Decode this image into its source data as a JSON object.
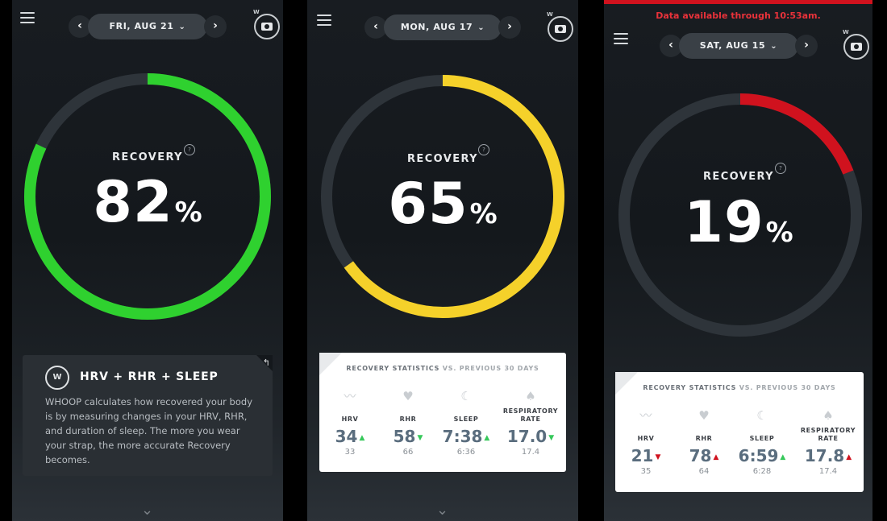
{
  "screens": [
    {
      "date": "FRI, AUG 21",
      "recovery_label": "RECOVERY",
      "recovery_value": "82",
      "percent_sign": "%",
      "recovery_fraction": 0.82,
      "ring_color": "#2fd12f",
      "info_card": {
        "title": "HRV + RHR + SLEEP",
        "logo_text": "W",
        "body": "WHOOP calculates how recovered your body is by measuring changes in your HRV, RHR, and duration of sleep. The more you wear your strap, the more accurate Recovery becomes."
      },
      "scroll_chevron": "⌄"
    },
    {
      "date": "MON, AUG 17",
      "recovery_label": "RECOVERY",
      "recovery_value": "65",
      "percent_sign": "%",
      "recovery_fraction": 0.65,
      "ring_color": "#f5d12a",
      "stats": {
        "title": "RECOVERY STATISTICS",
        "subtitle": "VS. PREVIOUS 30 DAYS",
        "items": [
          {
            "label": "HRV",
            "value": "34",
            "baseline": "33",
            "trend": "up",
            "icon": "heartbeat-icon"
          },
          {
            "label": "RHR",
            "value": "58",
            "baseline": "66",
            "trend": "down",
            "icon": "heart-icon"
          },
          {
            "label": "SLEEP",
            "value": "7:38",
            "baseline": "6:36",
            "trend": "up",
            "icon": "moon-icon"
          },
          {
            "label": "RESPIRATORY RATE",
            "value": "17.0",
            "baseline": "17.4",
            "trend": "down",
            "icon": "lungs-icon"
          }
        ]
      },
      "scroll_chevron": "⌄"
    },
    {
      "banner": "Data available through 10:53am.",
      "date": "SAT, AUG 15",
      "recovery_label": "RECOVERY",
      "recovery_value": "19",
      "percent_sign": "%",
      "recovery_fraction": 0.19,
      "ring_color": "#d0121e",
      "stats": {
        "title": "RECOVERY STATISTICS",
        "subtitle": "VS. PREVIOUS 30 DAYS",
        "items": [
          {
            "label": "HRV",
            "value": "21",
            "baseline": "35",
            "trend": "down",
            "icon": "heartbeat-icon"
          },
          {
            "label": "RHR",
            "value": "78",
            "baseline": "64",
            "trend": "up",
            "icon": "heart-icon"
          },
          {
            "label": "SLEEP",
            "value": "6:59",
            "baseline": "6:28",
            "trend": "up",
            "icon": "moon-icon"
          },
          {
            "label": "RESPIRATORY RATE",
            "value": "17.8",
            "baseline": "17.4",
            "trend": "up",
            "icon": "lungs-icon"
          }
        ]
      }
    }
  ],
  "colors": {
    "ring_track": "#2e343a",
    "trend_good": "#36c85a",
    "trend_bad": "#d0121e"
  }
}
